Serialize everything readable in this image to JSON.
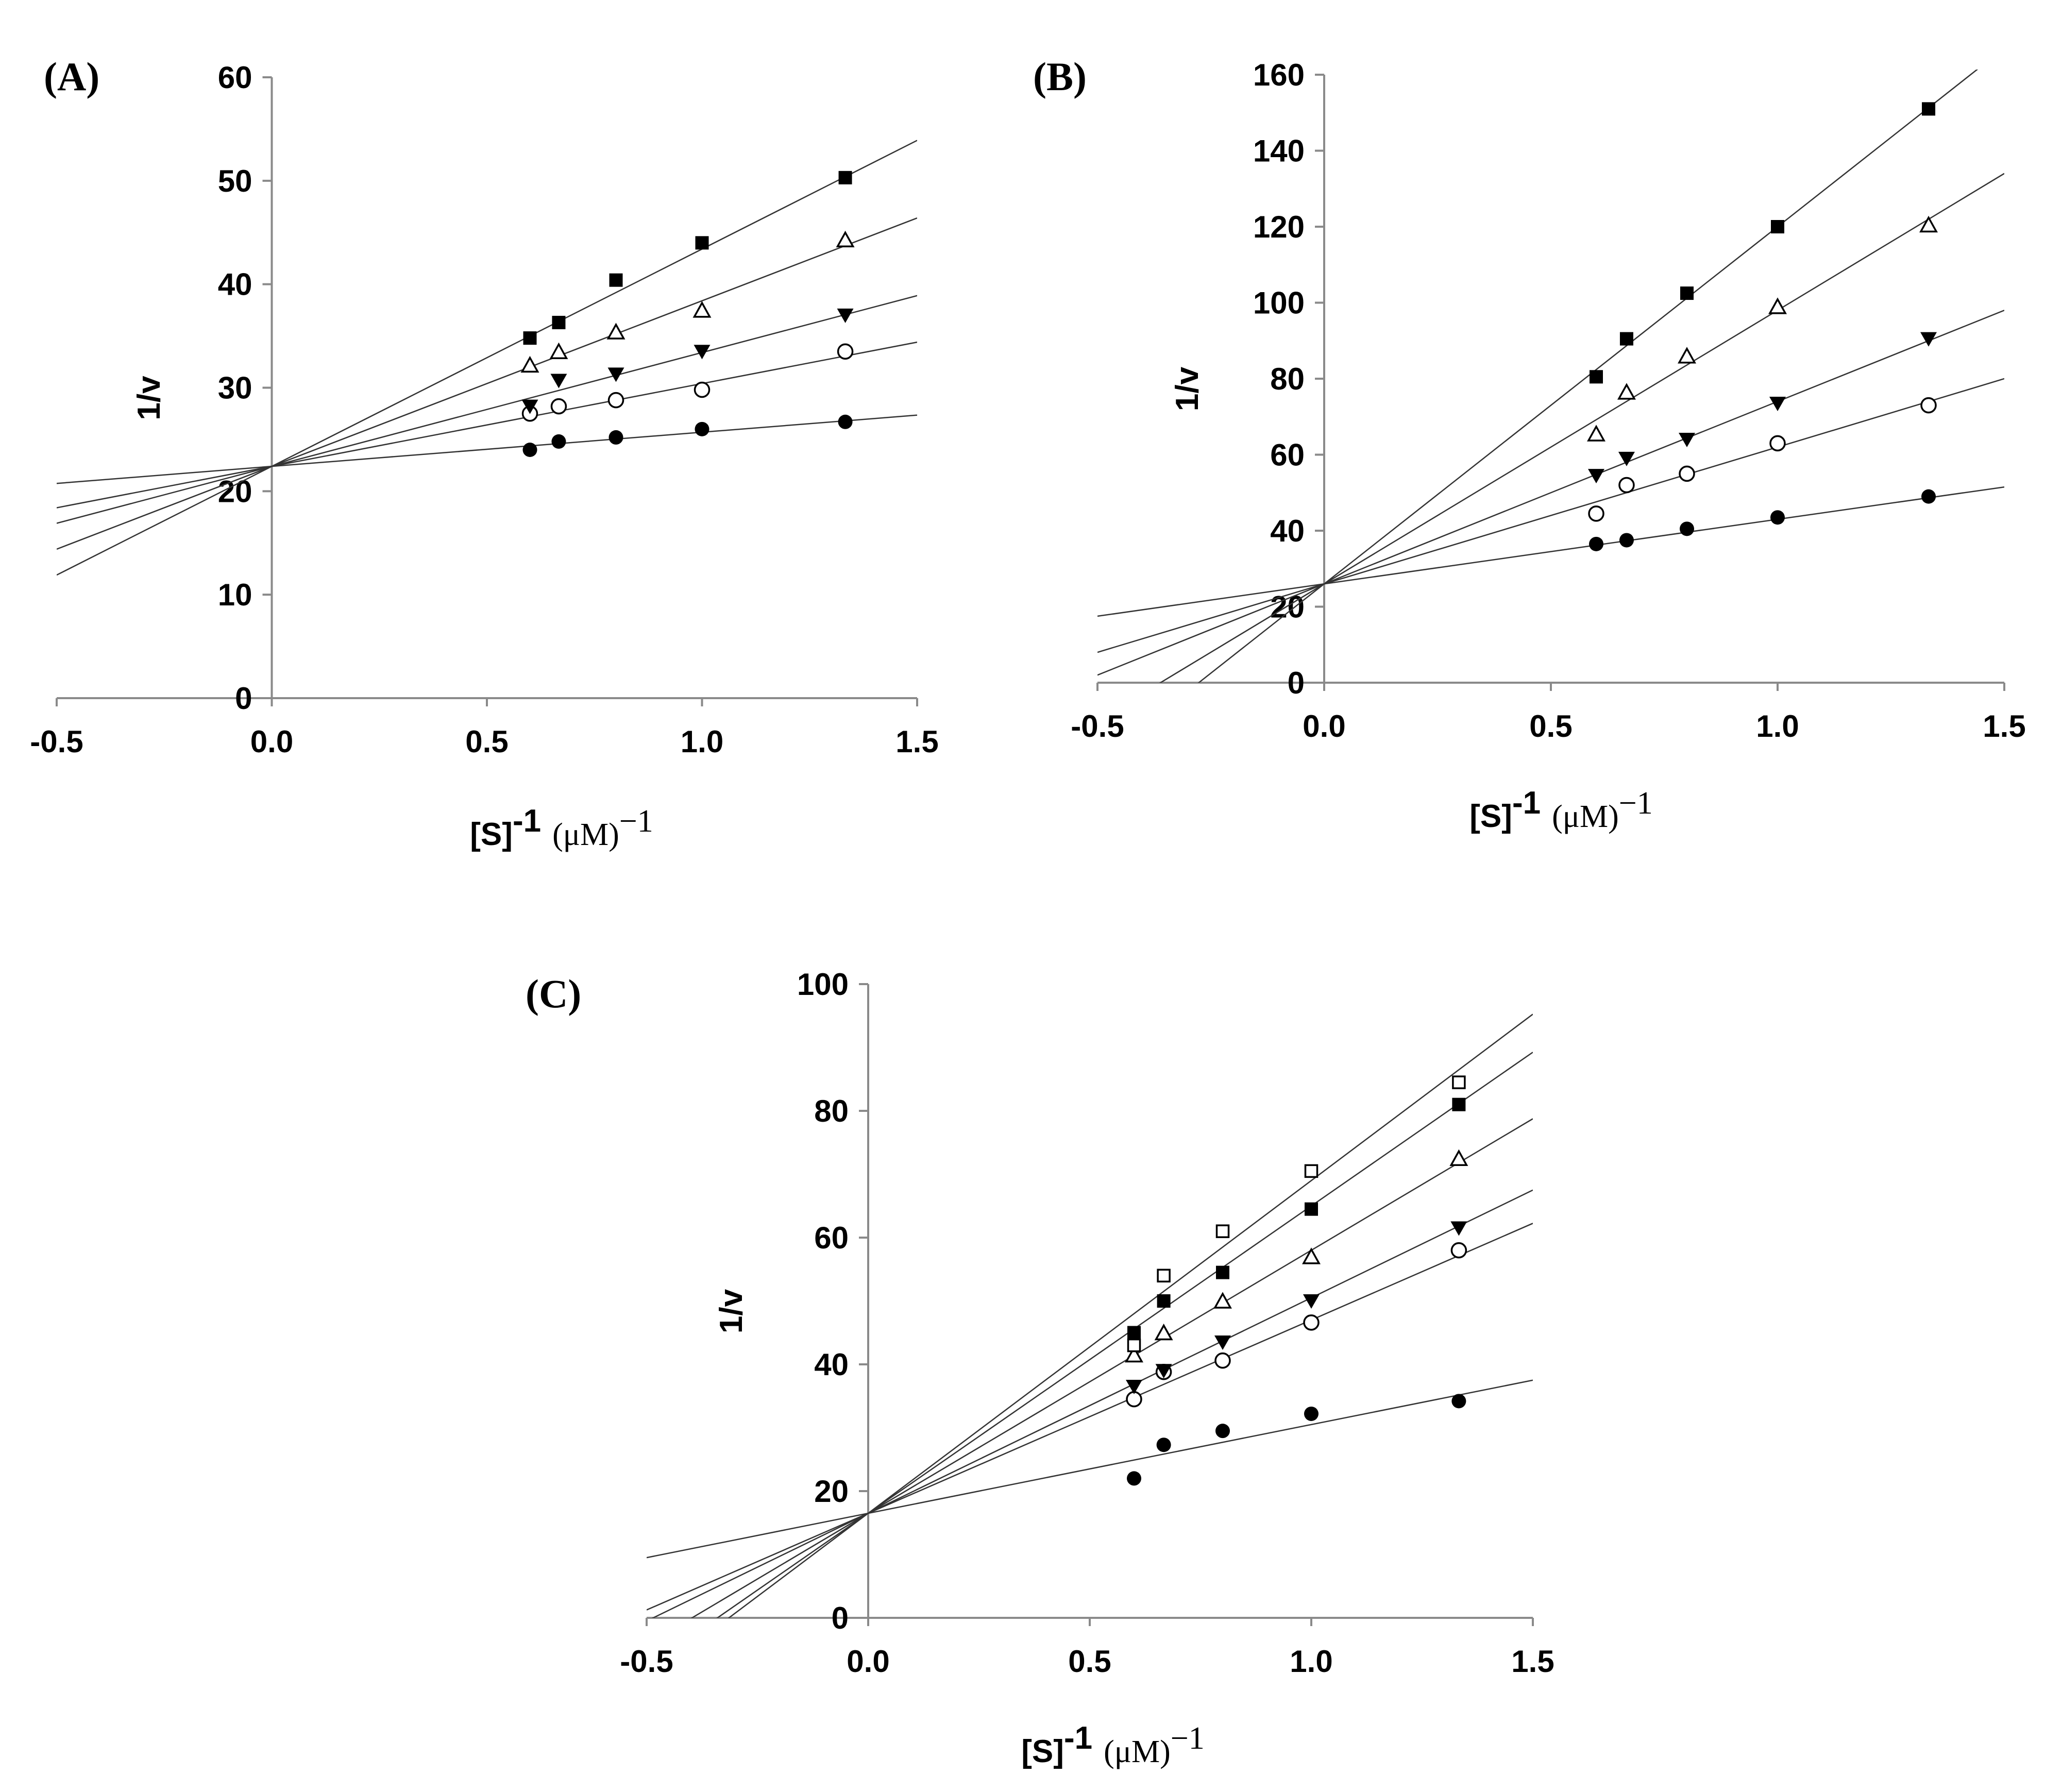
{
  "chart_data": [
    {
      "type": "scatter",
      "panel": "(A)",
      "ylabel": "1/v",
      "xlabel": "[S]",
      "xlabel_sup": "-1",
      "xlabel_unit": "(μM)",
      "xlabel_unit_sup": "−1",
      "xlim": [
        -0.5,
        1.5
      ],
      "ylim": [
        0,
        60
      ],
      "xticks": [
        "-0.5",
        "0.0",
        "0.5",
        "1.0",
        "1.5"
      ],
      "xtick_values": [
        -0.5,
        0.0,
        0.5,
        1.0,
        1.5
      ],
      "yticks": [
        "0",
        "10",
        "20",
        "30",
        "40",
        "50",
        "60"
      ],
      "ytick_values": [
        0,
        10,
        20,
        30,
        40,
        50,
        60
      ],
      "x": [
        0.6,
        0.667,
        0.8,
        1.0,
        1.333
      ],
      "series": [
        {
          "marker": "filled-circle",
          "values": [
            24.0,
            24.8,
            25.2,
            26.0,
            26.7
          ],
          "fit": {
            "intercept": 22.4,
            "slope": 3.3
          }
        },
        {
          "marker": "open-circle",
          "values": [
            27.5,
            28.2,
            28.8,
            29.8,
            33.5
          ],
          "fit": {
            "intercept": 22.4,
            "slope": 8.0
          }
        },
        {
          "marker": "filled-triangle-down",
          "values": [
            28.2,
            30.7,
            31.3,
            33.5,
            37.0
          ],
          "fit": {
            "intercept": 22.4,
            "slope": 11.0
          }
        },
        {
          "marker": "open-triangle-up",
          "values": [
            32.2,
            33.5,
            35.4,
            37.5,
            44.3
          ],
          "fit": {
            "intercept": 22.4,
            "slope": 16.0
          }
        },
        {
          "marker": "filled-square",
          "values": [
            34.8,
            36.3,
            40.4,
            44.0,
            50.3
          ],
          "fit": {
            "intercept": 22.4,
            "slope": 21.0
          }
        }
      ]
    },
    {
      "type": "scatter",
      "panel": "(B)",
      "ylabel": "1/v",
      "xlabel": "[S]",
      "xlabel_sup": "-1",
      "xlabel_unit": "(μM)",
      "xlabel_unit_sup": "−1",
      "xlim": [
        -0.5,
        1.5
      ],
      "ylim": [
        0,
        160
      ],
      "xticks": [
        "-0.5",
        "0.0",
        "0.5",
        "1.0",
        "1.5"
      ],
      "xtick_values": [
        -0.5,
        0.0,
        0.5,
        1.0,
        1.5
      ],
      "yticks": [
        "0",
        "20",
        "40",
        "60",
        "80",
        "100",
        "120",
        "140",
        "160"
      ],
      "ytick_values": [
        0,
        20,
        40,
        60,
        80,
        100,
        120,
        140,
        160
      ],
      "x": [
        0.6,
        0.667,
        0.8,
        1.0,
        1.333
      ],
      "series": [
        {
          "marker": "filled-circle",
          "values": [
            36.5,
            37.5,
            40.5,
            43.5,
            49.0
          ],
          "fit": {
            "intercept": 26.0,
            "slope": 17.0
          }
        },
        {
          "marker": "open-circle",
          "values": [
            44.5,
            52.0,
            55.0,
            63.0,
            73.0
          ],
          "fit": {
            "intercept": 26.0,
            "slope": 36.0
          }
        },
        {
          "marker": "filled-triangle-down",
          "values": [
            54.5,
            59.0,
            64.0,
            73.5,
            90.5
          ],
          "fit": {
            "intercept": 26.0,
            "slope": 48.0
          }
        },
        {
          "marker": "open-triangle-up",
          "values": [
            65.5,
            76.5,
            86.0,
            99.0,
            120.5
          ],
          "fit": {
            "intercept": 26.0,
            "slope": 72.0
          }
        },
        {
          "marker": "filled-square",
          "values": [
            80.5,
            90.5,
            102.5,
            120.0,
            151.0
          ],
          "fit": {
            "intercept": 26.0,
            "slope": 94.0
          }
        }
      ]
    },
    {
      "type": "scatter",
      "panel": "(C)",
      "ylabel": "1/v",
      "xlabel": "[S]",
      "xlabel_sup": "-1",
      "xlabel_unit": "(μM)",
      "xlabel_unit_sup": "−1",
      "xlim": [
        -0.5,
        1.5
      ],
      "ylim": [
        0,
        100
      ],
      "xticks": [
        "-0.5",
        "0.0",
        "0.5",
        "1.0",
        "1.5"
      ],
      "xtick_values": [
        -0.5,
        0.0,
        0.5,
        1.0,
        1.5
      ],
      "yticks": [
        "0",
        "20",
        "40",
        "60",
        "80",
        "100"
      ],
      "ytick_values": [
        0,
        20,
        40,
        60,
        80,
        100
      ],
      "x": [
        0.6,
        0.667,
        0.8,
        1.0,
        1.333
      ],
      "series": [
        {
          "marker": "filled-circle",
          "values": [
            22.0,
            27.3,
            29.5,
            32.2,
            34.2
          ],
          "fit": {
            "intercept": 16.5,
            "slope": 14.0
          }
        },
        {
          "marker": "open-circle",
          "values": [
            34.5,
            38.8,
            40.6,
            46.6,
            58.0
          ],
          "fit": {
            "intercept": 16.5,
            "slope": 30.5
          }
        },
        {
          "marker": "filled-triangle-down",
          "values": [
            36.5,
            39.0,
            43.5,
            50.0,
            61.5
          ],
          "fit": {
            "intercept": 16.5,
            "slope": 34.0
          }
        },
        {
          "marker": "open-triangle-up",
          "values": [
            41.5,
            45.0,
            50.0,
            57.0,
            72.5
          ],
          "fit": {
            "intercept": 16.5,
            "slope": 41.5
          }
        },
        {
          "marker": "filled-square",
          "values": [
            45.0,
            50.0,
            54.5,
            64.5,
            81.0
          ],
          "fit": {
            "intercept": 16.5,
            "slope": 48.5
          }
        },
        {
          "marker": "open-square",
          "values": [
            43.0,
            54.0,
            61.0,
            70.5,
            84.5
          ],
          "fit": {
            "intercept": 16.5,
            "slope": 52.5
          }
        }
      ]
    }
  ]
}
